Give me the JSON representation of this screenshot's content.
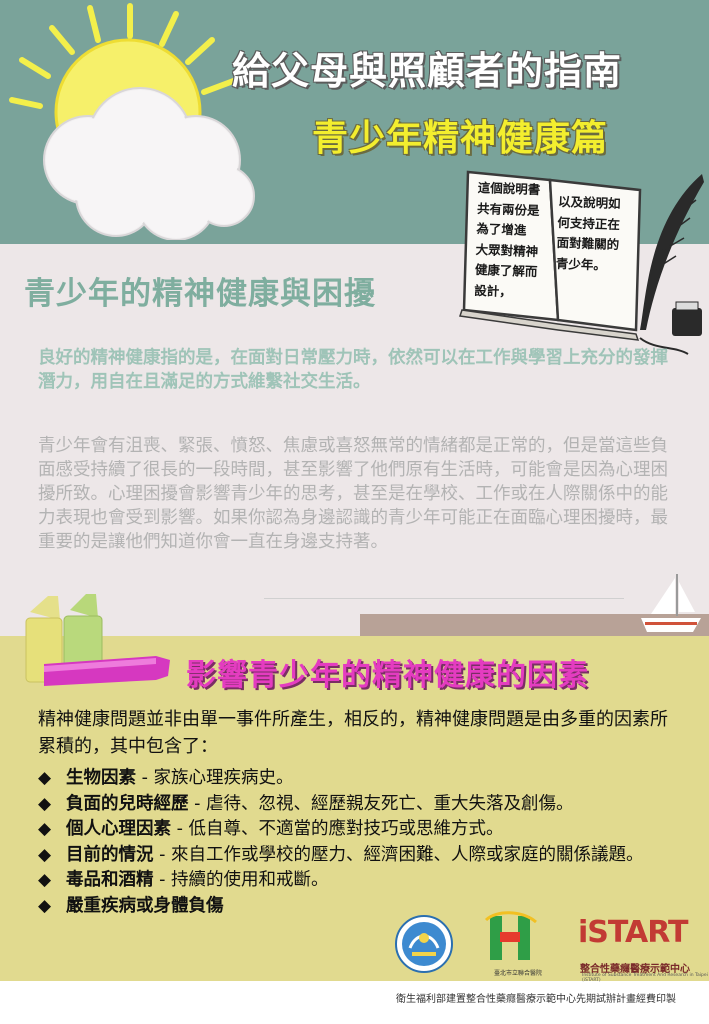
{
  "header": {
    "title": "給父母與照顧者的指南",
    "subtitle": "青少年精神健康篇"
  },
  "book": {
    "left_lines": [
      "這個說明書",
      "共有兩份是",
      "為了增進",
      "大眾對精神",
      "健康了解而",
      "設計，"
    ],
    "right_lines": [
      "以及說明如",
      "何支持正在",
      "面對難關的",
      "青少年。"
    ]
  },
  "section1": {
    "title": "青少年的精神健康與困擾",
    "highlight": "良好的精神健康指的是，在面對日常壓力時，依然可以在工作與學習上充分的發揮潛力，用自在且滿足的方式維繫社交生活。",
    "body": "青少年會有沮喪、緊張、憤怒、焦慮或喜怒無常的情緒都是正常的，但是當這些負面感受持續了很長的一段時間，甚至影響了他們原有生活時，可能會是因為心理困擾所致。心理困擾會影響青少年的思考，甚至是在學校、工作或在人際關係中的能力表現也會受到影響。如果你認為身邊認識的青少年可能正在面臨心理困擾時，最重要的是讓他們知道你會一直在身邊支持著。"
  },
  "section2": {
    "title": "影響青少年的精神健康的因素",
    "intro": "精神健康問題並非由單一事件所產生，相反的，精神健康問題是由多重的因素所累積的，其中包含了：",
    "bullet_glyph": "◆",
    "factors": [
      {
        "name": "生物因素",
        "desc": " - 家族心理疾病史。"
      },
      {
        "name": "負面的兒時經歷",
        "desc": " - 虐待、忽視、經歷親友死亡、重大失落及創傷。"
      },
      {
        "name": "個人心理因素",
        "desc": " - 低自尊、不適當的應對技巧或思維方式。"
      },
      {
        "name": "目前的情況",
        "desc": " - 來自工作或學校的壓力、經濟困難、人際或家庭的關係議題。"
      },
      {
        "name": "毒品和酒精",
        "desc": " - 持續的使用和戒斷。"
      },
      {
        "name": "嚴重疾病或身體負傷",
        "desc": ""
      }
    ]
  },
  "logos": {
    "taipei_hospital_small": "臺北市立聯合醫院",
    "istart_word": "iSTART",
    "istart_name": "整合性藥癮醫療示範中心",
    "istart_small": "Institute of Substance Treatment And Research in Taipei (iSTART)"
  },
  "footer": {
    "credit": "衛生福利部建置整合性藥癮醫療示範中心先期試辦計畫經費印製"
  },
  "colors": {
    "top_band": "#7aa39a",
    "mid_band": "#ede7e8",
    "bottom_band": "#e1da8f",
    "title_yellow": "#f3ee2e",
    "section1_teal": "#7fae9f",
    "section2_magenta": "#e43cc0"
  }
}
